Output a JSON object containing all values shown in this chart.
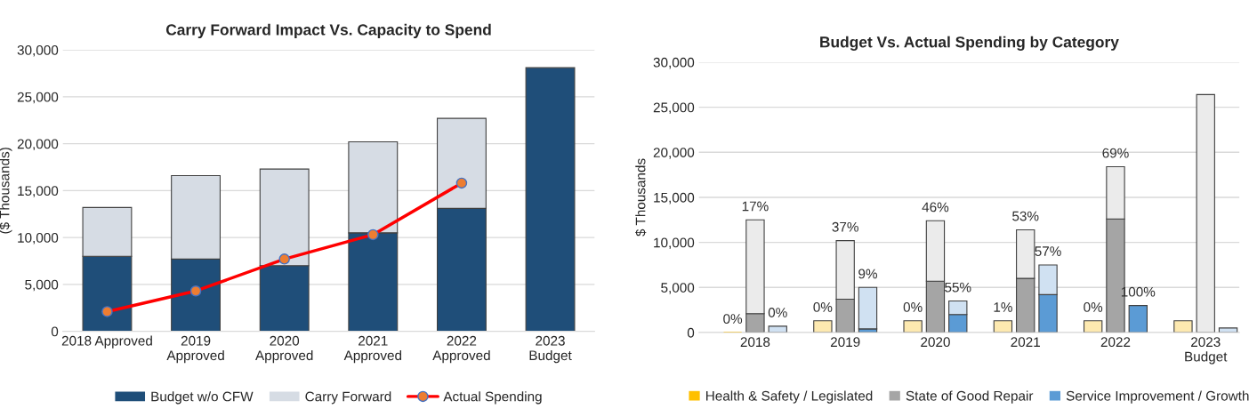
{
  "chart_data": [
    {
      "type": "bar",
      "title": "Carry Forward Impact Vs. Capacity to Spend",
      "ylabel": "($ Thousands)",
      "categories": [
        "2018 Approved",
        "2019\nApproved",
        "2020\nApproved",
        "2021\nApproved",
        "2022\nApproved",
        "2023\nBudget"
      ],
      "stacked": true,
      "series": [
        {
          "name": "Budget w/o CFW",
          "color": "#1f4e79",
          "values": [
            8000,
            7700,
            7000,
            10500,
            13100,
            28100
          ]
        },
        {
          "name": "Carry Forward",
          "color": "#d6dce4",
          "values": [
            5200,
            8900,
            10300,
            9700,
            9600,
            null
          ]
        },
        {
          "name": "Actual Spending",
          "type": "line",
          "color": "#ff0000",
          "marker": "circle",
          "values": [
            2100,
            4300,
            7700,
            10300,
            15800,
            null
          ]
        }
      ],
      "ylim": [
        0,
        30000
      ],
      "yticks": [
        {
          "value": 0,
          "label": "0"
        },
        {
          "value": 5000,
          "label": "5,000"
        },
        {
          "value": 10000,
          "label": "10,000"
        },
        {
          "value": 15000,
          "label": "15,000"
        },
        {
          "value": 20000,
          "label": "20,000"
        },
        {
          "value": 25000,
          "label": "25,000"
        },
        {
          "value": 30000,
          "label": "30,000"
        }
      ],
      "grid": "y",
      "legend": "bottom"
    },
    {
      "type": "bar",
      "title": "Budget Vs. Actual Spending by Category",
      "ylabel": "$ Thousands",
      "categories": [
        null,
        null,
        "2018",
        null,
        null,
        null,
        "2019",
        null,
        null,
        null,
        "2020",
        null,
        null,
        null,
        "2021",
        null,
        null,
        null,
        "2022",
        null,
        null,
        null,
        "2023\nBudget",
        null
      ],
      "stacked": true,
      "series": [
        {
          "name": "Health & Safety / Legislated",
          "color": "#ffc000",
          "values": [
            null,
            0,
            null,
            null,
            null,
            0,
            null,
            null,
            null,
            0,
            null,
            null,
            null,
            0,
            null,
            null,
            null,
            0,
            null,
            null,
            null,
            0,
            null,
            null
          ]
        },
        {
          "name": "State of Good Repair",
          "color": "#a5a5a5",
          "values": [
            null,
            null,
            2100,
            null,
            null,
            null,
            3700,
            null,
            null,
            null,
            5700,
            null,
            null,
            null,
            6000,
            null,
            null,
            null,
            12600,
            null,
            null,
            null,
            0,
            null
          ]
        },
        {
          "name": "Service Improvement / Growth",
          "color": "#5b9bd5",
          "values": [
            null,
            null,
            null,
            0,
            null,
            null,
            null,
            400,
            null,
            null,
            null,
            2000,
            null,
            null,
            null,
            4200,
            null,
            null,
            null,
            3000,
            null,
            null,
            null,
            0
          ]
        },
        {
          "color": "#fde9b0",
          "values": [
            null,
            null,
            null,
            null,
            null,
            1300,
            null,
            null,
            null,
            1300,
            null,
            null,
            null,
            1300,
            null,
            null,
            null,
            1300,
            null,
            null,
            null,
            1300,
            null,
            null
          ]
        },
        {
          "color": "#ebebeb",
          "values": [
            null,
            null,
            10400,
            null,
            null,
            null,
            6500,
            null,
            null,
            null,
            6700,
            null,
            null,
            null,
            5400,
            null,
            null,
            null,
            5800,
            null,
            null,
            null,
            26400,
            null
          ]
        },
        {
          "color": "#d0e1f2",
          "values": [
            null,
            null,
            null,
            700,
            null,
            null,
            null,
            4600,
            null,
            null,
            null,
            1500,
            null,
            null,
            null,
            3300,
            null,
            null,
            null,
            null,
            null,
            null,
            null,
            500
          ]
        }
      ],
      "annotations": [
        "0%",
        "17%",
        "0%",
        "0%",
        "37%",
        "9%",
        "0%",
        "46%",
        "55%",
        "1%",
        "53%",
        "57%",
        "0%",
        "69%",
        "100%"
      ],
      "ylim": [
        0,
        30000
      ],
      "yticks": [
        {
          "value": 0,
          "label": "0"
        },
        {
          "value": 5000,
          "label": "5,000"
        },
        {
          "value": 10000,
          "label": "10,000"
        },
        {
          "value": 15000,
          "label": "15,000"
        },
        {
          "value": 20000,
          "label": "20,000"
        },
        {
          "value": 25000,
          "label": "25,000"
        },
        {
          "value": 30000,
          "label": "30,000"
        }
      ],
      "grid": "y",
      "legend": "bottom"
    }
  ]
}
